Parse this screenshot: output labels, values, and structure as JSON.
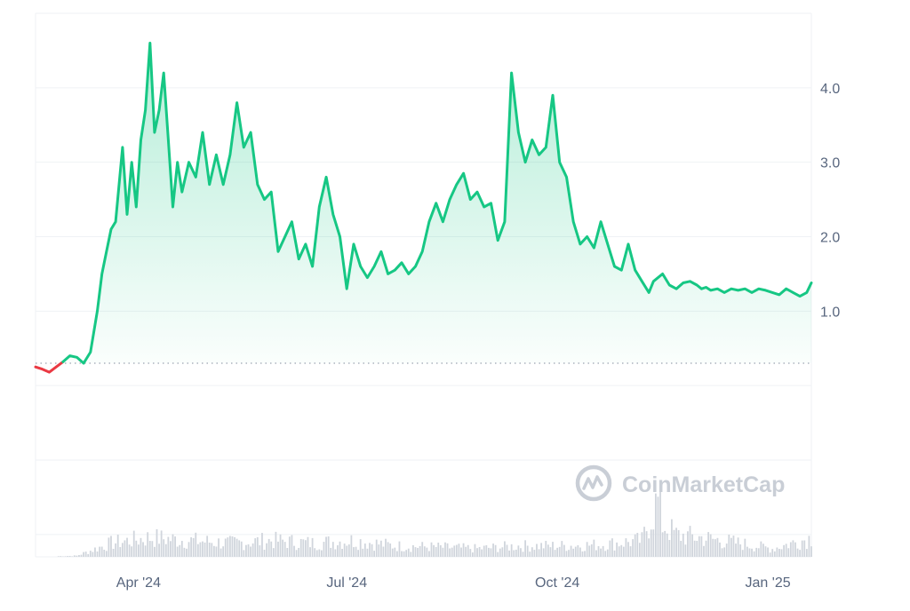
{
  "watermark": {
    "text": "CoinMarketCap",
    "icon": "coinmarketcap-logo"
  },
  "colors": {
    "up": "#16c784",
    "down": "#ea3943",
    "grid": "#eff2f5",
    "baseline_dots": "#9aa3b1",
    "volume": "#d0d5dc",
    "axis_text": "#58667e"
  },
  "chart_data": {
    "type": "area",
    "title": "",
    "xlabel": "",
    "ylabel": "",
    "x_tick_labels": [
      "Apr '24",
      "Jul '24",
      "Oct '24",
      "Jan '25"
    ],
    "y_tick_labels": [
      "4.0",
      "3.0",
      "2.0",
      "1.0"
    ],
    "y_ticks": [
      4.0,
      3.0,
      2.0,
      1.0
    ],
    "ylim": [
      -2.3,
      5.0
    ],
    "xlim": [
      "2024-02-16",
      "2025-01-20"
    ],
    "grid": true,
    "baseline_value": 0.3,
    "series": [
      {
        "x": [
          "2024-02-16",
          "2024-02-19",
          "2024-02-22",
          "2024-02-25",
          "2024-02-28",
          "2024-03-02",
          "2024-03-05",
          "2024-03-08",
          "2024-03-11",
          "2024-03-14",
          "2024-03-16",
          "2024-03-18",
          "2024-03-20",
          "2024-03-22",
          "2024-03-25",
          "2024-03-27",
          "2024-03-29",
          "2024-03-31",
          "2024-04-02",
          "2024-04-04",
          "2024-04-06",
          "2024-04-08",
          "2024-04-10",
          "2024-04-12",
          "2024-04-14",
          "2024-04-16",
          "2024-04-18",
          "2024-04-20",
          "2024-04-23",
          "2024-04-26",
          "2024-04-29",
          "2024-05-02",
          "2024-05-05",
          "2024-05-08",
          "2024-05-11",
          "2024-05-14",
          "2024-05-17",
          "2024-05-20",
          "2024-05-23",
          "2024-05-26",
          "2024-05-29",
          "2024-06-01",
          "2024-06-04",
          "2024-06-07",
          "2024-06-10",
          "2024-06-13",
          "2024-06-16",
          "2024-06-19",
          "2024-06-22",
          "2024-06-25",
          "2024-06-28",
          "2024-07-01",
          "2024-07-04",
          "2024-07-07",
          "2024-07-10",
          "2024-07-13",
          "2024-07-16",
          "2024-07-19",
          "2024-07-22",
          "2024-07-25",
          "2024-07-28",
          "2024-07-31",
          "2024-08-03",
          "2024-08-06",
          "2024-08-09",
          "2024-08-12",
          "2024-08-15",
          "2024-08-18",
          "2024-08-21",
          "2024-08-24",
          "2024-08-27",
          "2024-08-30",
          "2024-09-02",
          "2024-09-05",
          "2024-09-08",
          "2024-09-11",
          "2024-09-14",
          "2024-09-17",
          "2024-09-20",
          "2024-09-23",
          "2024-09-26",
          "2024-09-29",
          "2024-10-02",
          "2024-10-05",
          "2024-10-08",
          "2024-10-11",
          "2024-10-14",
          "2024-10-17",
          "2024-10-20",
          "2024-10-23",
          "2024-10-26",
          "2024-10-29",
          "2024-11-01",
          "2024-11-04",
          "2024-11-07",
          "2024-11-10",
          "2024-11-12",
          "2024-11-14",
          "2024-11-16",
          "2024-11-19",
          "2024-11-22",
          "2024-11-25",
          "2024-11-28",
          "2024-12-01",
          "2024-12-03",
          "2024-12-05",
          "2024-12-07",
          "2024-12-10",
          "2024-12-13",
          "2024-12-16",
          "2024-12-19",
          "2024-12-22",
          "2024-12-25",
          "2024-12-28",
          "2024-12-31",
          "2025-01-03",
          "2025-01-06",
          "2025-01-09",
          "2025-01-12",
          "2025-01-15",
          "2025-01-18",
          "2025-01-20"
        ],
        "y": [
          0.25,
          0.22,
          0.18,
          0.25,
          0.32,
          0.4,
          0.38,
          0.3,
          0.45,
          1.0,
          1.5,
          1.8,
          2.1,
          2.2,
          3.2,
          2.3,
          3.0,
          2.4,
          3.3,
          3.7,
          4.6,
          3.4,
          3.7,
          4.2,
          3.3,
          2.4,
          3.0,
          2.6,
          3.0,
          2.8,
          3.4,
          2.7,
          3.1,
          2.7,
          3.1,
          3.8,
          3.2,
          3.4,
          2.7,
          2.5,
          2.6,
          1.8,
          2.0,
          2.2,
          1.7,
          1.9,
          1.6,
          2.4,
          2.8,
          2.3,
          2.0,
          1.3,
          1.9,
          1.6,
          1.45,
          1.6,
          1.8,
          1.5,
          1.55,
          1.65,
          1.5,
          1.6,
          1.8,
          2.2,
          2.45,
          2.2,
          2.5,
          2.7,
          2.85,
          2.5,
          2.6,
          2.4,
          2.45,
          1.95,
          2.2,
          4.2,
          3.4,
          3.0,
          3.3,
          3.1,
          3.2,
          3.9,
          3.0,
          2.8,
          2.2,
          1.9,
          2.0,
          1.85,
          2.2,
          1.9,
          1.6,
          1.55,
          1.9,
          1.55,
          1.4,
          1.25,
          1.4,
          1.45,
          1.5,
          1.35,
          1.3,
          1.38,
          1.4,
          1.35,
          1.3,
          1.32,
          1.28,
          1.3,
          1.25,
          1.3,
          1.28,
          1.3,
          1.25,
          1.3,
          1.28,
          1.25,
          1.22,
          1.3,
          1.25,
          1.2,
          1.25,
          1.38
        ]
      }
    ],
    "volume": {
      "x": [
        "2024-02-16",
        "2024-03-05",
        "2024-03-20",
        "2024-04-06",
        "2024-04-23",
        "2024-05-11",
        "2024-05-29",
        "2024-06-16",
        "2024-07-04",
        "2024-07-22",
        "2024-08-09",
        "2024-08-27",
        "2024-09-14",
        "2024-10-02",
        "2024-10-20",
        "2024-11-07",
        "2024-11-12",
        "2024-11-14",
        "2024-11-16",
        "2024-11-22",
        "2024-12-03",
        "2024-12-19",
        "2025-01-03",
        "2025-01-20"
      ],
      "values": [
        0,
        0.02,
        0.25,
        0.35,
        0.3,
        0.25,
        0.3,
        0.25,
        0.3,
        0.2,
        0.18,
        0.15,
        0.2,
        0.2,
        0.22,
        0.3,
        0.85,
        1.0,
        0.6,
        0.4,
        0.35,
        0.25,
        0.15,
        0.35
      ]
    }
  }
}
